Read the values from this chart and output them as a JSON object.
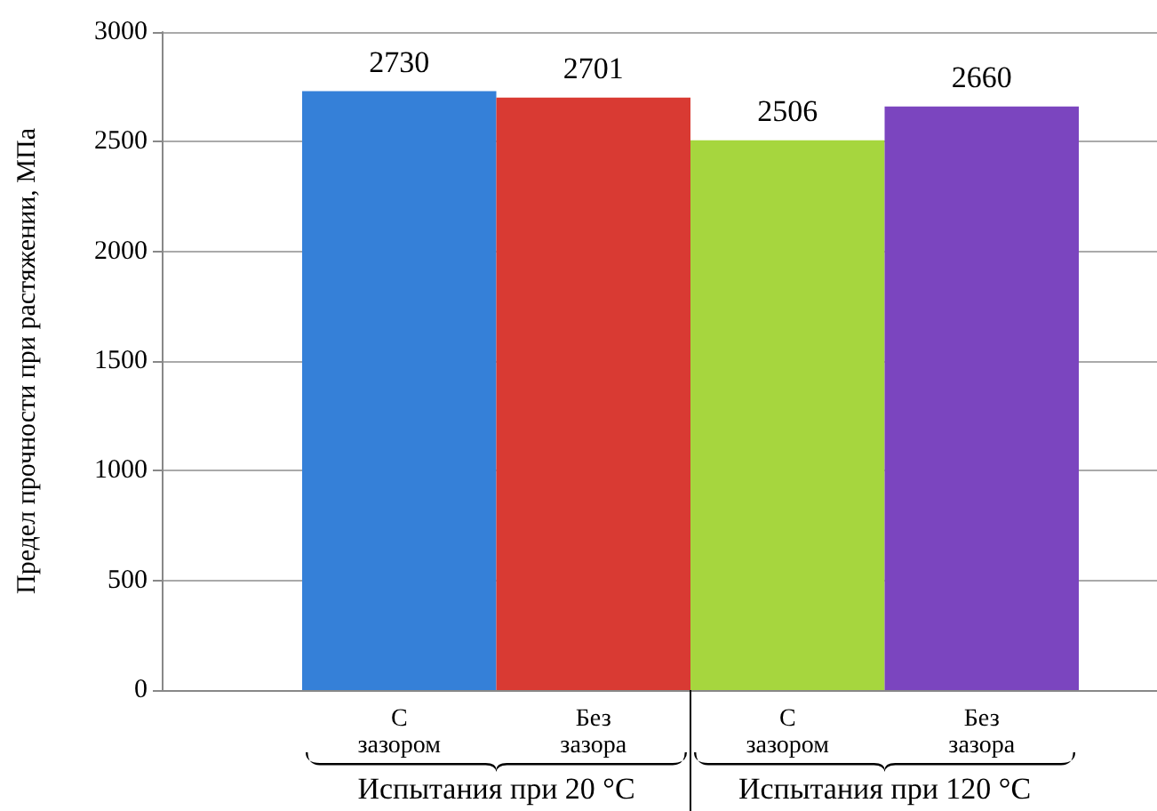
{
  "chart_data": {
    "type": "bar",
    "ylabel": "Предел прочности при растяжении, МПа",
    "categories": [
      "С зазором",
      "Без зазора",
      "С зазором",
      "Без зазора"
    ],
    "values": [
      2730,
      2701,
      2506,
      2660
    ],
    "colors": [
      "#3580d8",
      "#d93a33",
      "#a6d63e",
      "#7b45bf"
    ],
    "ylim": [
      0,
      3000
    ],
    "yticks": [
      0,
      500,
      1000,
      1500,
      2000,
      2500,
      3000
    ],
    "grid": "y",
    "data_labels": true,
    "annotations": [
      "Испытания при 20 °C",
      "Испытания при 120 °C"
    ]
  }
}
